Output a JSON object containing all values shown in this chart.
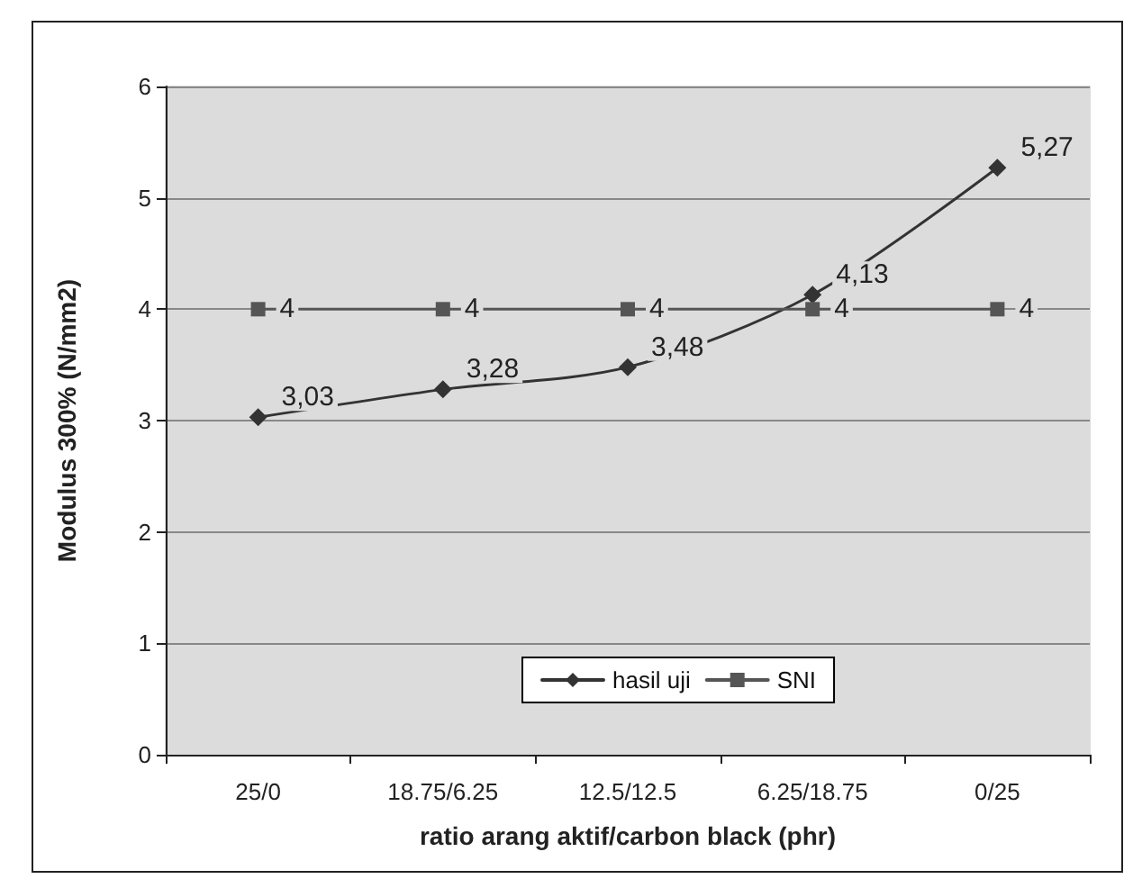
{
  "chart_data": {
    "type": "line",
    "xlabel": "ratio arang aktif/carbon black (phr)",
    "ylabel": "Modulus 300% (N/mm2)",
    "categories": [
      "25/0",
      "18.75/6.25",
      "12.5/12.5",
      "6.25/18.75",
      "0/25"
    ],
    "series": [
      {
        "name": "hasil uji",
        "color": "#333333",
        "marker": "diamond",
        "values": [
          3.03,
          3.28,
          3.48,
          4.13,
          5.27
        ],
        "value_labels": [
          "3,03",
          "3,28",
          "3,48",
          "4,13",
          "5,27"
        ]
      },
      {
        "name": "SNI",
        "color": "#555555",
        "marker": "square",
        "values": [
          4,
          4,
          4,
          4,
          4
        ],
        "value_labels": [
          "4",
          "4",
          "4",
          "4",
          "4"
        ]
      }
    ],
    "ylim": [
      0,
      6
    ],
    "yticks": [
      0,
      1,
      2,
      3,
      4,
      5,
      6
    ],
    "grid": "y",
    "legend": "bottom",
    "line_style": "solid"
  }
}
